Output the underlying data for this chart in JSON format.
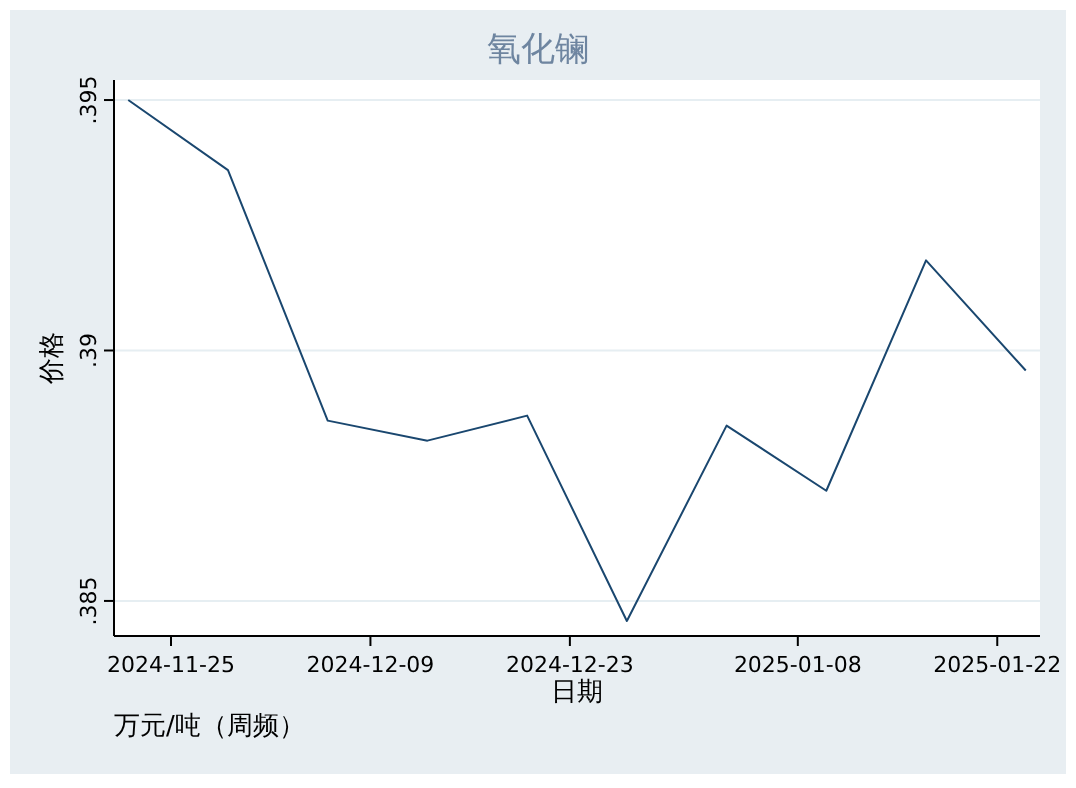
{
  "chart_data": {
    "type": "line",
    "title": "氧化镧",
    "xlabel": "日期",
    "ylabel": "价格",
    "annotations": [
      "万元/吨（周频）"
    ],
    "x": [
      "2024-11-22",
      "2024-11-29",
      "2024-12-06",
      "2024-12-13",
      "2024-12-20",
      "2024-12-27",
      "2025-01-03",
      "2025-01-10",
      "2025-01-17",
      "2025-01-24"
    ],
    "series": [
      {
        "color": "#1a476f",
        "values": [
          0.395,
          0.3936,
          0.3886,
          0.3882,
          0.3887,
          0.3846,
          0.3885,
          0.3872,
          0.3918,
          0.3896
        ]
      }
    ],
    "xlim": [
      "2024-11-21",
      "2025-01-25"
    ],
    "xticks": [
      {
        "value": "2024-11-25",
        "label": "2024-11-25"
      },
      {
        "value": "2024-12-09",
        "label": "2024-12-09"
      },
      {
        "value": "2024-12-23",
        "label": "2024-12-23"
      },
      {
        "value": "2025-01-08",
        "label": "2025-01-08"
      },
      {
        "value": "2025-01-22",
        "label": "2025-01-22"
      }
    ],
    "ylim": [
      0.3843,
      0.3954
    ],
    "yticks": [
      {
        "value": 0.385,
        "label": ".385"
      },
      {
        "value": 0.39,
        "label": ".39"
      },
      {
        "value": 0.395,
        "label": ".395"
      }
    ],
    "grid": "y",
    "marker": "none",
    "line_style": "solid"
  }
}
